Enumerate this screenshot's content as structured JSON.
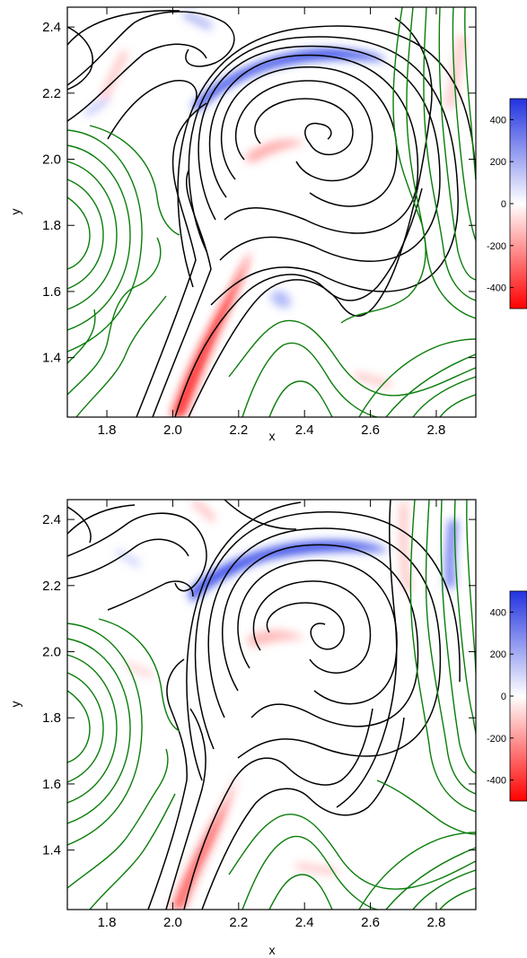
{
  "chart_data": [
    {
      "type": "heatmap",
      "panel": "top",
      "xlabel": "x",
      "ylabel": "y",
      "xlim": [
        1.68,
        2.92
      ],
      "ylim": [
        1.22,
        2.46
      ],
      "xticks": [
        1.8,
        2.0,
        2.2,
        2.4,
        2.6,
        2.8
      ],
      "yticks": [
        1.4,
        1.6,
        1.8,
        2.0,
        2.2,
        2.4
      ],
      "xtick_labels": [
        "1.8",
        "2.0",
        "2.2",
        "2.4",
        "2.6",
        "2.8"
      ],
      "ytick_labels": [
        "1.4",
        "1.6",
        "1.8",
        "2.0",
        "2.2",
        "2.4"
      ],
      "colorbar": {
        "range": [
          -500,
          500
        ],
        "ticks": [
          400,
          200,
          0,
          -200,
          -400
        ],
        "tick_labels": [
          "400",
          "200",
          "0",
          "-200",
          "-400"
        ],
        "colors": {
          "high": "#2233e0",
          "mid": "#ffffff",
          "low": "#ff0000"
        }
      },
      "contours": {
        "closed_field_color": "#000000",
        "open_field_color": "#0a7d0a"
      },
      "features": [
        {
          "type": "blue_band",
          "x": [
            2.14,
            2.56
          ],
          "y": [
            2.2,
            2.33
          ],
          "peak": 450
        },
        {
          "type": "red_sheet",
          "x": [
            2.02,
            2.22
          ],
          "y": [
            1.22,
            1.72
          ],
          "peak": -480
        },
        {
          "type": "red_patch",
          "x": [
            2.3,
            2.45
          ],
          "y": [
            2.02,
            2.08
          ],
          "peak": -150
        }
      ]
    },
    {
      "type": "heatmap",
      "panel": "bottom",
      "xlabel": "x",
      "ylabel": "y",
      "xlim": [
        1.68,
        2.92
      ],
      "ylim": [
        1.22,
        2.46
      ],
      "xticks": [
        1.8,
        2.0,
        2.2,
        2.4,
        2.6,
        2.8
      ],
      "yticks": [
        1.4,
        1.6,
        1.8,
        2.0,
        2.2,
        2.4
      ],
      "xtick_labels": [
        "1.8",
        "2.0",
        "2.2",
        "2.4",
        "2.6",
        "2.8"
      ],
      "ytick_labels": [
        "1.4",
        "1.6",
        "1.8",
        "2.0",
        "2.2",
        "2.4"
      ],
      "colorbar": {
        "range": [
          -500,
          500
        ],
        "ticks": [
          400,
          200,
          0,
          -200,
          -400
        ],
        "tick_labels": [
          "400",
          "200",
          "0",
          "-200",
          "-400"
        ],
        "colors": {
          "high": "#2233e0",
          "mid": "#ffffff",
          "low": "#ff0000"
        }
      },
      "contours": {
        "closed_field_color": "#000000",
        "open_field_color": "#0a7d0a"
      },
      "features": [
        {
          "type": "blue_band",
          "x": [
            2.12,
            2.55
          ],
          "y": [
            2.2,
            2.33
          ],
          "peak": 420
        },
        {
          "type": "red_sheet",
          "x": [
            2.0,
            2.2
          ],
          "y": [
            1.22,
            1.6
          ],
          "peak": -380
        },
        {
          "type": "blue_streak",
          "x": [
            2.85,
            2.9
          ],
          "y": [
            2.2,
            2.42
          ],
          "peak": 300
        }
      ]
    }
  ]
}
